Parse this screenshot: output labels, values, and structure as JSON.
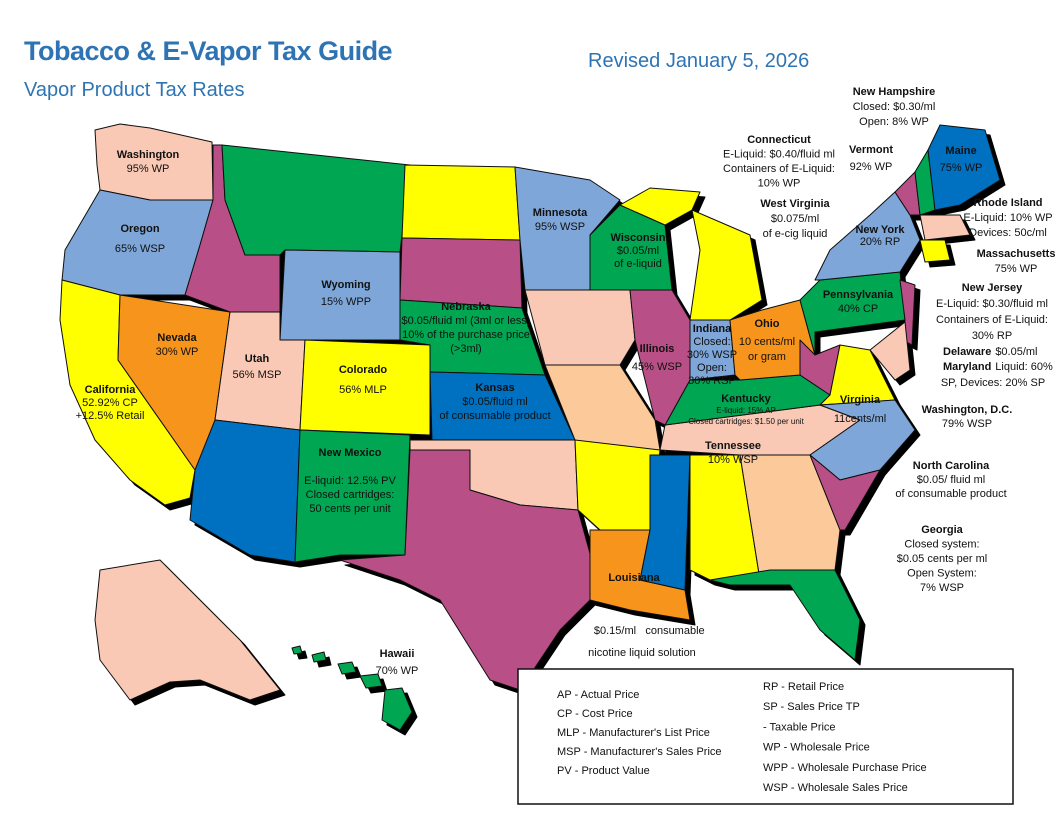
{
  "header": {
    "title": "Tobacco & E-Vapor Tax Guide",
    "subtitle": "Vapor Product Tax Rates",
    "revised": "Revised January 5, 2026"
  },
  "states": [
    {
      "name": "Washington",
      "lines": [
        "95% WP"
      ]
    },
    {
      "name": "Oregon",
      "lines": [
        "65% WSP"
      ]
    },
    {
      "name": "California",
      "lines": [
        "52.92% CP",
        "+12.5% Retail"
      ]
    },
    {
      "name": "Nevada",
      "lines": [
        "30% WP"
      ]
    },
    {
      "name": "Utah",
      "lines": [
        "56% MSP"
      ]
    },
    {
      "name": "Wyoming",
      "lines": [
        "15% WPP"
      ]
    },
    {
      "name": "Colorado",
      "lines": [
        "56% MLP"
      ]
    },
    {
      "name": "New Mexico",
      "lines": [
        "E-liquid:  12.5% PV",
        "Closed  cartridges:",
        "50 cents per unit"
      ]
    },
    {
      "name": "Nebraska",
      "lines": [
        "$0.05/fluid ml (3ml or less)",
        "10% of the purchase price",
        "(>3ml)"
      ]
    },
    {
      "name": "Kansas",
      "lines": [
        "$0.05/fluid ml",
        "of consumable product"
      ]
    },
    {
      "name": "Minnesota",
      "lines": [
        "95% WSP"
      ]
    },
    {
      "name": "Wisconsin",
      "lines": [
        "$0.05/ml",
        "of e-liquid"
      ]
    },
    {
      "name": "Illinois",
      "lines": [
        "45% WSP"
      ]
    },
    {
      "name": "Indiana",
      "lines": [
        "Closed:",
        "30% WSP",
        "Open:",
        "30% RSP"
      ]
    },
    {
      "name": "Ohio",
      "lines": [
        "10 cents/ml",
        "or gram"
      ]
    },
    {
      "name": "Kentucky",
      "lines": [
        "E-liquid: 15% AP",
        "Closed cartridges: $1.50 per unit"
      ]
    },
    {
      "name": "Tennessee",
      "lines": [
        "10% WSP"
      ]
    },
    {
      "name": "Louisiana",
      "lines": [
        "$0.15/ml",
        "consumable",
        "nicotine liquid solution"
      ]
    },
    {
      "name": "Hawaii",
      "lines": [
        "70% WP"
      ]
    },
    {
      "name": "Pennsylvania",
      "lines": [
        "40% CP"
      ]
    },
    {
      "name": "Virginia",
      "lines": [
        "11cents/ml"
      ]
    },
    {
      "name": "New Hampshire",
      "lines": [
        "Closed: $0.30/ml",
        "Open: 8% WP"
      ]
    },
    {
      "name": "Connecticut",
      "lines": [
        "E-Liquid: $0.40/fluid ml",
        "Containers of E-Liquid:",
        "10% WP"
      ]
    },
    {
      "name": "Vermont",
      "lines": [
        "92% WP"
      ]
    },
    {
      "name": "Maine",
      "lines": [
        "75% WP"
      ]
    },
    {
      "name": "Rhode Island",
      "lines": [
        "E-Liquid: 10% WP",
        "Devices: 50c/ml"
      ]
    },
    {
      "name": "New York",
      "lines": [
        "20% RP"
      ]
    },
    {
      "name": "Massachusetts",
      "lines": [
        "75% WP"
      ]
    },
    {
      "name": "West Virginia",
      "lines": [
        "$0.075/ml",
        "of e-cig liquid"
      ]
    },
    {
      "name": "New Jersey",
      "lines": [
        "E-Liquid: $0.30/fluid ml",
        "Containers of E-Liquid:",
        "30% RP"
      ]
    },
    {
      "name": "Delaware",
      "lines": [
        "$0.05/ml"
      ]
    },
    {
      "name": "Maryland",
      "lines": [
        "Liquid: 60%",
        "SP, Devices: 20% SP"
      ]
    },
    {
      "name": "Washington, D.C.",
      "lines": [
        "79% WSP"
      ]
    },
    {
      "name": "North Carolina",
      "lines": [
        "$0.05/ fluid ml",
        "of consumable product"
      ]
    },
    {
      "name": "Georgia",
      "lines": [
        "Closed system:",
        "$0.05 cents per ml",
        "Open System:",
        "7% WSP"
      ]
    }
  ],
  "legend": {
    "left": [
      "AP - Actual Price",
      "CP - Cost Price",
      "MLP - Manufacturer's List Price",
      "MSP - Manufacturer's Sales Price",
      "PV - Product Value"
    ],
    "right": [
      "RP - Retail Price",
      "SP - Sales Price TP",
      "- Taxable Price",
      "WP - Wholesale Price",
      "WPP - Wholesale Purchase Price",
      "WSP - Wholesale Sales Price"
    ]
  }
}
